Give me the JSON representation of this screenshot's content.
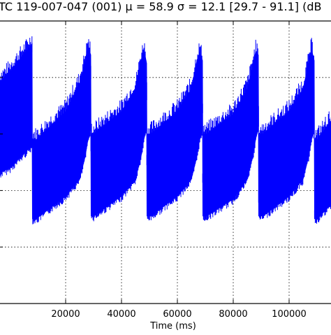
{
  "chart_data": {
    "type": "line",
    "title": "TC 119-007-047 (001)  μ = 58.9 σ = 12.1 [29.7 - 91.1] (dB",
    "xlabel": "Time (ms)",
    "ylabel": "",
    "xlim": [
      -4000,
      116000
    ],
    "ylim": [
      0,
      100
    ],
    "x_ticks": [
      20000,
      40000,
      60000,
      80000,
      100000
    ],
    "x_tick_labels": [
      "20000",
      "40000",
      "60000",
      "80000",
      "100000"
    ],
    "grid": true,
    "series": [
      {
        "color": "#0000ff",
        "envelope_x": [
          -4000,
          0,
          8000,
          8100,
          9500,
          20000,
          25000,
          27000,
          28000,
          29000,
          29100,
          30000,
          40000,
          45000,
          47000,
          48000,
          49000,
          49100,
          50500,
          60000,
          65000,
          67000,
          68000,
          69000,
          69100,
          70500,
          80000,
          85000,
          87000,
          88000,
          89000,
          89100,
          90500,
          100000,
          105000,
          107000,
          108000,
          109000,
          109100,
          110000,
          116000
        ],
        "upper": [
          78,
          82,
          92,
          58,
          58,
          68,
          78,
          86,
          91,
          88,
          60,
          60,
          68,
          76,
          86,
          90,
          85,
          60,
          60,
          68,
          76,
          86,
          89,
          86,
          60,
          60,
          67,
          76,
          84,
          89,
          88,
          60,
          60,
          68,
          76,
          85,
          90,
          86,
          58,
          58,
          66
        ],
        "lower": [
          46,
          48,
          56,
          30,
          30,
          38,
          44,
          52,
          58,
          62,
          31,
          31,
          38,
          44,
          52,
          58,
          62,
          31,
          31,
          38,
          44,
          52,
          58,
          61,
          31,
          31,
          37,
          44,
          52,
          58,
          62,
          31,
          31,
          38,
          44,
          52,
          58,
          62,
          30,
          30,
          36
        ]
      }
    ]
  }
}
